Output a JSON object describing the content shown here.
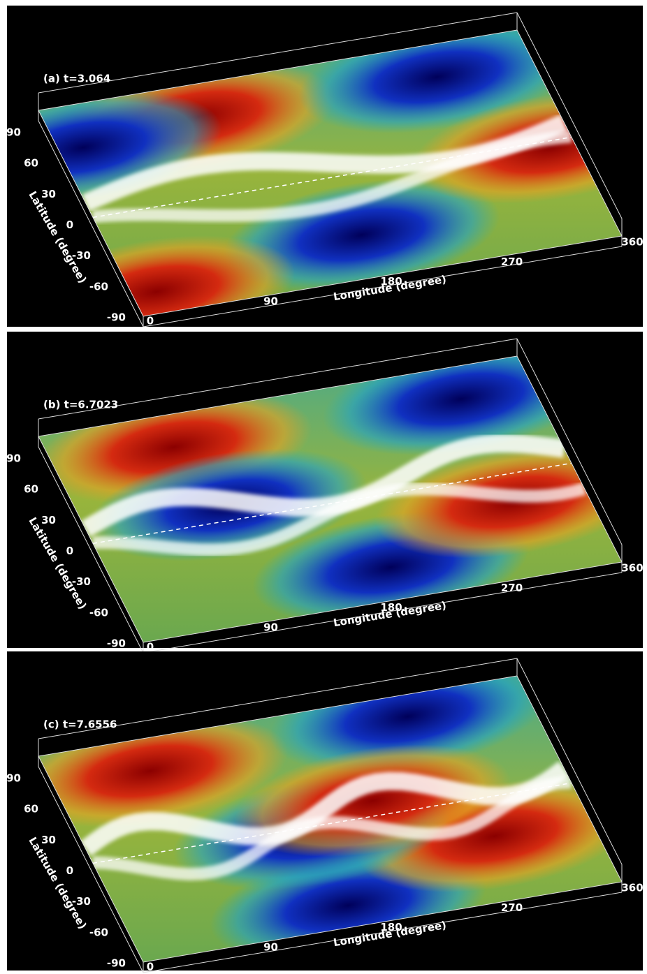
{
  "panels": [
    {
      "label": "(a) t=3.064",
      "x_label": "Longitude (degree)",
      "y_label": "Latitude (degree)",
      "lon_ticks": [
        0,
        90,
        180,
        270,
        360
      ],
      "lat_ticks": [
        -90,
        -60,
        -30,
        0,
        30,
        60,
        90
      ]
    },
    {
      "label": "(b) t=6.7023",
      "x_label": "Longitude (degree)",
      "y_label": "Latitude (degree)",
      "lon_ticks": [
        0,
        90,
        180,
        270,
        360
      ],
      "lat_ticks": [
        -90,
        -60,
        -30,
        0,
        30,
        60,
        90
      ]
    },
    {
      "label": "(c) t=7.6556",
      "x_label": "Longitude (degree)",
      "y_label": "Latitude (degree)",
      "lon_ticks": [
        0,
        90,
        180,
        270,
        360
      ],
      "lat_ticks": [
        -90,
        -60,
        -30,
        0,
        30,
        60,
        90
      ]
    }
  ]
}
